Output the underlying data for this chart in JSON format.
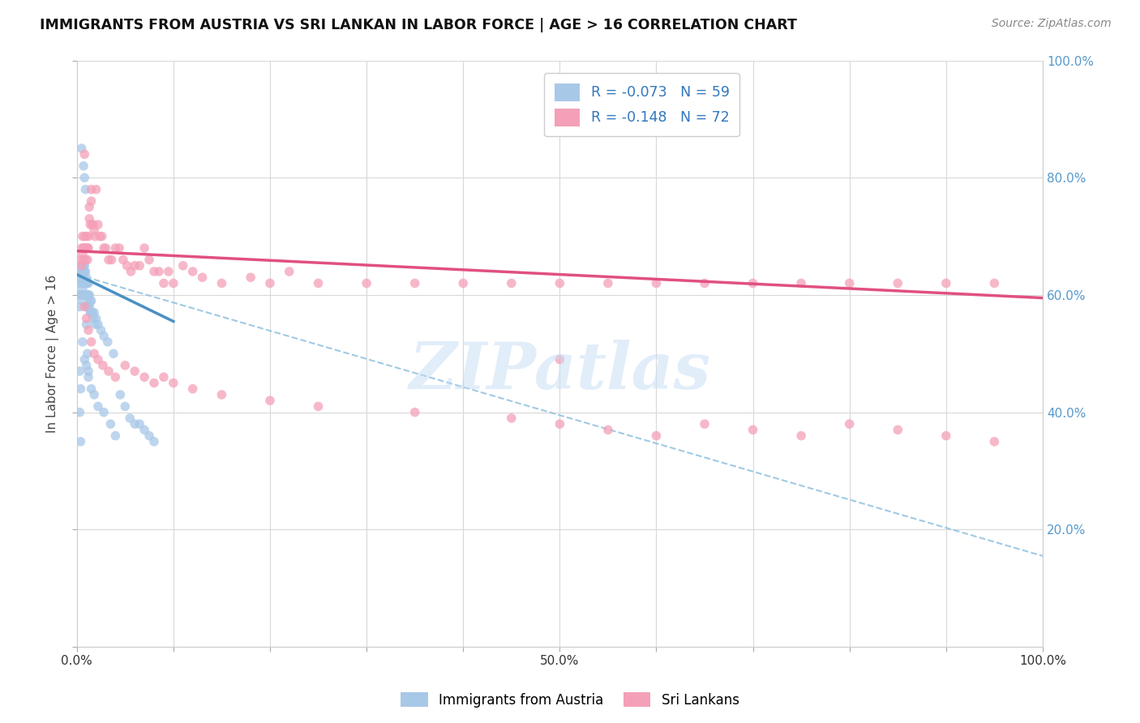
{
  "title": "IMMIGRANTS FROM AUSTRIA VS SRI LANKAN IN LABOR FORCE | AGE > 16 CORRELATION CHART",
  "source": "Source: ZipAtlas.com",
  "ylabel": "In Labor Force | Age > 16",
  "xlim": [
    0.0,
    1.0
  ],
  "ylim": [
    0.0,
    1.0
  ],
  "legend_r1": "R = -0.073",
  "legend_n1": "N = 59",
  "legend_r2": "R = -0.148",
  "legend_n2": "N = 72",
  "color_austria": "#a8c8e8",
  "color_srilanka": "#f4a0b8",
  "color_austria_line_solid": "#4a90c4",
  "color_srilanka_line": "#e05080",
  "color_austria_line_dashed": "#90c0e0",
  "background_color": "#ffffff",
  "grid_color": "#d8d8d8",
  "right_axis_color": "#5599cc",
  "watermark_text": "ZIPatlas",
  "austria_x": [
    0.002,
    0.003,
    0.003,
    0.004,
    0.004,
    0.004,
    0.005,
    0.005,
    0.005,
    0.005,
    0.006,
    0.006,
    0.006,
    0.006,
    0.007,
    0.007,
    0.007,
    0.007,
    0.008,
    0.008,
    0.008,
    0.008,
    0.009,
    0.009,
    0.009,
    0.01,
    0.01,
    0.01,
    0.01,
    0.011,
    0.011,
    0.012,
    0.012,
    0.012,
    0.013,
    0.013,
    0.014,
    0.014,
    0.015,
    0.015,
    0.016,
    0.017,
    0.018,
    0.019,
    0.02,
    0.022,
    0.025,
    0.028,
    0.032,
    0.038,
    0.005,
    0.007,
    0.008,
    0.009,
    0.01,
    0.011,
    0.012,
    0.003,
    0.004
  ],
  "austria_y": [
    0.62,
    0.6,
    0.58,
    0.64,
    0.63,
    0.6,
    0.65,
    0.64,
    0.62,
    0.6,
    0.64,
    0.63,
    0.61,
    0.59,
    0.65,
    0.63,
    0.62,
    0.6,
    0.65,
    0.64,
    0.62,
    0.6,
    0.64,
    0.62,
    0.6,
    0.63,
    0.62,
    0.6,
    0.58,
    0.62,
    0.6,
    0.62,
    0.6,
    0.58,
    0.6,
    0.58,
    0.59,
    0.57,
    0.59,
    0.57,
    0.57,
    0.56,
    0.57,
    0.55,
    0.56,
    0.55,
    0.54,
    0.53,
    0.52,
    0.5,
    0.85,
    0.82,
    0.8,
    0.78,
    0.55,
    0.5,
    0.47,
    0.4,
    0.35
  ],
  "austria_x_extra": [
    0.003,
    0.004,
    0.006,
    0.008,
    0.01,
    0.012,
    0.015,
    0.018,
    0.022,
    0.028,
    0.035,
    0.04,
    0.045,
    0.05,
    0.055,
    0.06,
    0.065,
    0.07,
    0.075,
    0.08
  ],
  "austria_y_extra": [
    0.47,
    0.44,
    0.52,
    0.49,
    0.48,
    0.46,
    0.44,
    0.43,
    0.41,
    0.4,
    0.38,
    0.36,
    0.43,
    0.41,
    0.39,
    0.38,
    0.38,
    0.37,
    0.36,
    0.35
  ],
  "srilanka_x": [
    0.004,
    0.005,
    0.005,
    0.006,
    0.006,
    0.007,
    0.007,
    0.008,
    0.008,
    0.009,
    0.009,
    0.01,
    0.01,
    0.011,
    0.011,
    0.012,
    0.012,
    0.013,
    0.013,
    0.014,
    0.015,
    0.015,
    0.016,
    0.017,
    0.018,
    0.019,
    0.02,
    0.022,
    0.024,
    0.026,
    0.028,
    0.03,
    0.033,
    0.036,
    0.04,
    0.044,
    0.048,
    0.052,
    0.056,
    0.06,
    0.065,
    0.07,
    0.075,
    0.08,
    0.085,
    0.09,
    0.095,
    0.1,
    0.11,
    0.12,
    0.13,
    0.15,
    0.18,
    0.2,
    0.22,
    0.25,
    0.3,
    0.35,
    0.4,
    0.45,
    0.5,
    0.55,
    0.6,
    0.65,
    0.7,
    0.75,
    0.8,
    0.85,
    0.9,
    0.95,
    0.5,
    0.008
  ],
  "srilanka_y": [
    0.66,
    0.68,
    0.65,
    0.7,
    0.67,
    0.68,
    0.66,
    0.7,
    0.68,
    0.68,
    0.66,
    0.7,
    0.68,
    0.68,
    0.66,
    0.7,
    0.68,
    0.75,
    0.73,
    0.72,
    0.78,
    0.76,
    0.72,
    0.72,
    0.71,
    0.7,
    0.78,
    0.72,
    0.7,
    0.7,
    0.68,
    0.68,
    0.66,
    0.66,
    0.68,
    0.68,
    0.66,
    0.65,
    0.64,
    0.65,
    0.65,
    0.68,
    0.66,
    0.64,
    0.64,
    0.62,
    0.64,
    0.62,
    0.65,
    0.64,
    0.63,
    0.62,
    0.63,
    0.62,
    0.64,
    0.62,
    0.62,
    0.62,
    0.62,
    0.62,
    0.62,
    0.62,
    0.62,
    0.62,
    0.62,
    0.62,
    0.62,
    0.62,
    0.62,
    0.62,
    0.49,
    0.84
  ],
  "srilanka_x_extra": [
    0.008,
    0.01,
    0.012,
    0.015,
    0.018,
    0.022,
    0.027,
    0.033,
    0.04,
    0.05,
    0.06,
    0.07,
    0.08,
    0.09,
    0.1,
    0.12,
    0.15,
    0.2,
    0.25,
    0.35,
    0.45,
    0.5,
    0.55,
    0.6,
    0.65,
    0.7,
    0.75,
    0.8,
    0.85,
    0.9,
    0.95
  ],
  "srilanka_y_extra": [
    0.58,
    0.56,
    0.54,
    0.52,
    0.5,
    0.49,
    0.48,
    0.47,
    0.46,
    0.48,
    0.47,
    0.46,
    0.45,
    0.46,
    0.45,
    0.44,
    0.43,
    0.42,
    0.41,
    0.4,
    0.39,
    0.38,
    0.37,
    0.36,
    0.38,
    0.37,
    0.36,
    0.38,
    0.37,
    0.36,
    0.35
  ],
  "austria_line_x0": 0.0,
  "austria_line_x1": 0.1,
  "austria_line_y0": 0.635,
  "austria_line_y1": 0.555,
  "srilanka_line_x0": 0.0,
  "srilanka_line_x1": 1.0,
  "srilanka_line_y0": 0.675,
  "srilanka_line_y1": 0.595,
  "dashed_line_x0": 0.0,
  "dashed_line_x1": 1.0,
  "dashed_line_y0": 0.635,
  "dashed_line_y1": 0.155
}
